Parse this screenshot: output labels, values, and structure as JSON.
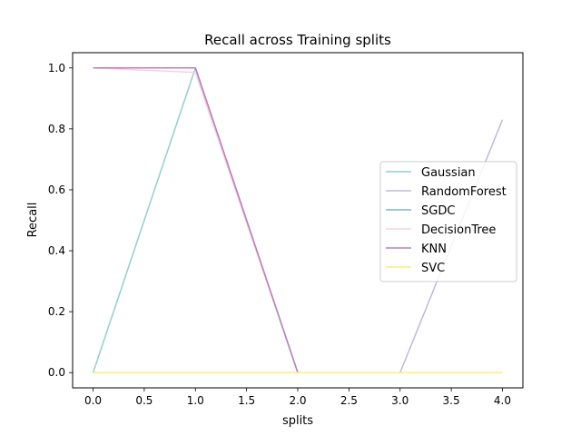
{
  "chart_data": {
    "type": "line",
    "title": "Recall across Training splits",
    "xlabel": "splits",
    "ylabel": "Recall",
    "x": [
      0,
      1,
      2,
      3,
      4
    ],
    "xlim": [
      -0.2,
      4.2
    ],
    "ylim": [
      -0.05,
      1.05
    ],
    "xticks": [
      "0.0",
      "0.5",
      "1.0",
      "1.5",
      "2.0",
      "2.5",
      "3.0",
      "3.5",
      "4.0"
    ],
    "yticks": [
      "0.0",
      "0.2",
      "0.4",
      "0.6",
      "0.8",
      "1.0"
    ],
    "grid": false,
    "legend_position": "center-right",
    "series": [
      {
        "name": "Gaussian",
        "color": "#8dd3c7",
        "values": [
          0.0,
          1.0,
          0.0,
          0.0,
          0.0
        ]
      },
      {
        "name": "RandomForest",
        "color": "#bebada",
        "values": [
          1.0,
          1.0,
          0.0,
          0.0,
          0.83
        ]
      },
      {
        "name": "SGDC",
        "color": "#80b1d3",
        "values": [
          1.0,
          1.0,
          0.0,
          0.0,
          0.0
        ]
      },
      {
        "name": "DecisionTree",
        "color": "#fccde5",
        "values": [
          1.0,
          0.985,
          0.0,
          0.0,
          0.0
        ]
      },
      {
        "name": "KNN",
        "color": "#bc80bd",
        "values": [
          1.0,
          1.0,
          0.0,
          0.0,
          0.0
        ]
      },
      {
        "name": "SVC",
        "color": "#ffed6f",
        "values": [
          0.0,
          0.0,
          0.0,
          0.0,
          0.0
        ]
      }
    ]
  }
}
